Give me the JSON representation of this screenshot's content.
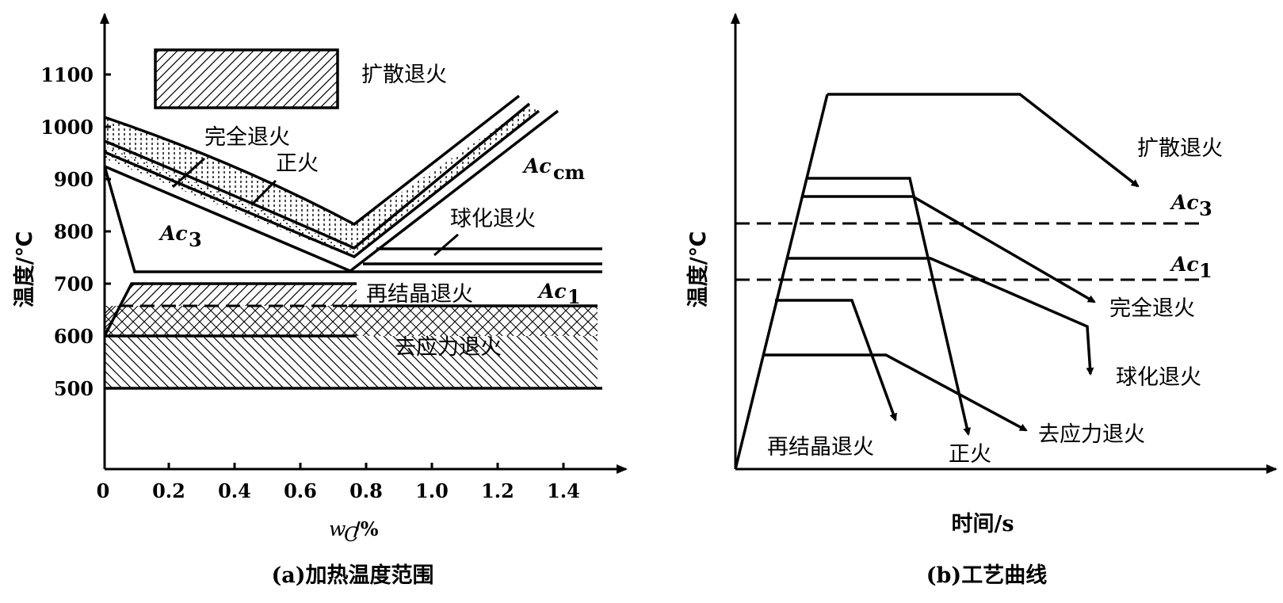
{
  "panel_a": {
    "caption": "(a)加热温度范围",
    "y_axis_label": "温度/℃",
    "x_axis_label_w": "w",
    "x_axis_label_sub": "C",
    "x_axis_label_unit": "/%",
    "y_ticks": [
      "1100",
      "1000",
      "900",
      "800",
      "700",
      "600",
      "500"
    ],
    "x_ticks": [
      "0",
      "0.2",
      "0.4",
      "0.6",
      "0.8",
      "1.0",
      "1.2",
      "1.4"
    ],
    "labels": {
      "diffusion": "扩散退火",
      "full": "完全退火",
      "normalizing": "正火",
      "spheroidizing": "球化退火",
      "recrystallization": "再结晶退火",
      "stress_relief": "去应力退火",
      "ac3_main": "Ac",
      "ac3_sub": "3",
      "accm_main": "Ac",
      "accm_sub": "cm",
      "ac1_main": "Ac",
      "ac1_sub": "1"
    }
  },
  "panel_b": {
    "caption": "(b)工艺曲线",
    "y_axis_label": "温度/℃",
    "x_axis_label": "时间/s",
    "labels": {
      "diffusion": "扩散退火",
      "ac3_main": "Ac",
      "ac3_sub": "3",
      "ac1_main": "Ac",
      "ac1_sub": "1",
      "full": "完全退火",
      "spheroidizing": "球化退火",
      "stress_relief": "去应力退火",
      "recrystallization": "再结晶退火",
      "normalizing": "正火"
    }
  },
  "colors": {
    "ink": "#000000",
    "background": "#ffffff"
  }
}
